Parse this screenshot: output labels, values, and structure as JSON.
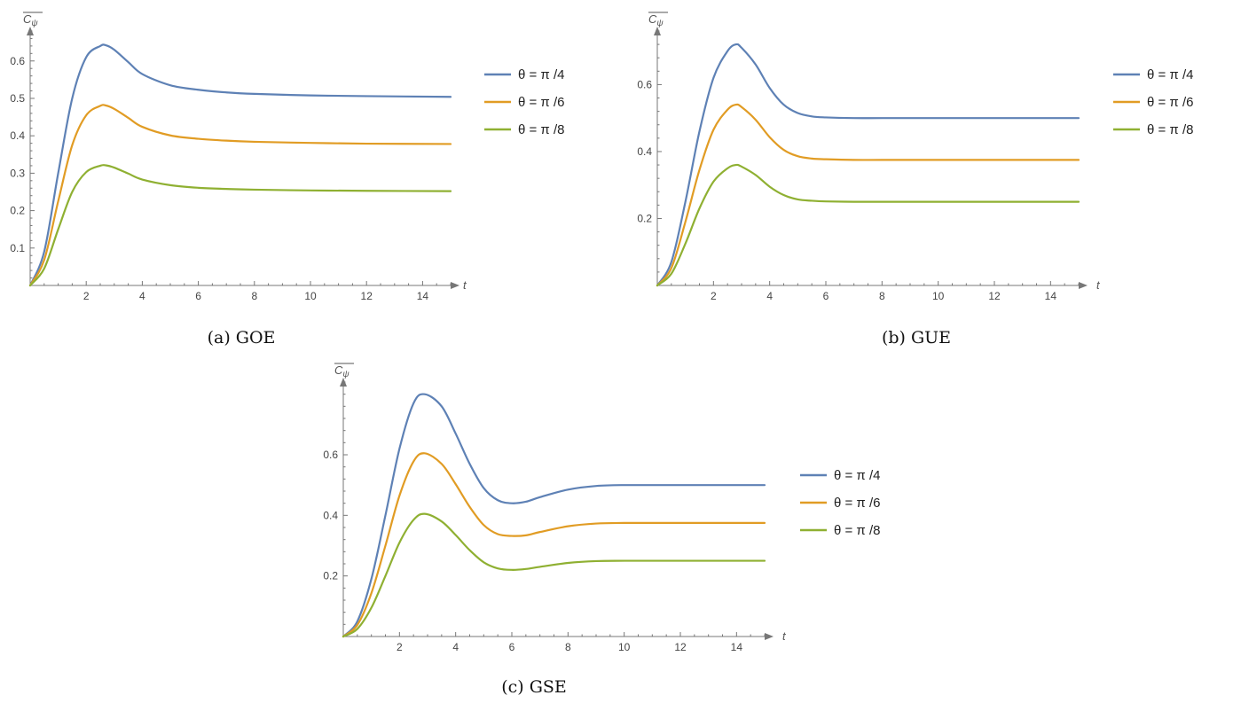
{
  "legend": [
    "θ = π /4",
    "θ = π /6",
    "θ = π /8"
  ],
  "colors": [
    "#5E81B5",
    "#E19C24",
    "#8FB032"
  ],
  "chart_data": [
    {
      "type": "line",
      "caption": "(a) GOE",
      "xlabel": "t",
      "ylabel": "C_ψ",
      "xlim": [
        0,
        15
      ],
      "ylim": [
        0,
        0.68
      ],
      "xticks": [
        2,
        4,
        6,
        8,
        10,
        12,
        14
      ],
      "yticks": [
        0.1,
        0.2,
        0.3,
        0.4,
        0.5,
        0.6
      ],
      "x": [
        0,
        0.5,
        1,
        1.5,
        2,
        2.5,
        2.7,
        3,
        3.5,
        4,
        5,
        6,
        7,
        8,
        10,
        12,
        15
      ],
      "series": [
        {
          "name": "θ = π /4",
          "values": [
            0,
            0.09,
            0.3,
            0.5,
            0.61,
            0.64,
            0.642,
            0.63,
            0.597,
            0.565,
            0.535,
            0.523,
            0.516,
            0.512,
            0.508,
            0.506,
            0.504
          ]
        },
        {
          "name": "θ = π /6",
          "values": [
            0,
            0.068,
            0.225,
            0.375,
            0.455,
            0.48,
            0.481,
            0.472,
            0.448,
            0.424,
            0.401,
            0.392,
            0.387,
            0.384,
            0.381,
            0.379,
            0.378
          ]
        },
        {
          "name": "θ = π /8",
          "values": [
            0,
            0.045,
            0.15,
            0.25,
            0.303,
            0.32,
            0.321,
            0.315,
            0.299,
            0.283,
            0.268,
            0.261,
            0.258,
            0.256,
            0.254,
            0.253,
            0.252
          ]
        }
      ]
    },
    {
      "type": "line",
      "caption": "(b) GUE",
      "xlabel": "t",
      "ylabel": "C_ψ",
      "xlim": [
        0,
        15
      ],
      "ylim": [
        0,
        0.76
      ],
      "xticks": [
        2,
        4,
        6,
        8,
        10,
        12,
        14
      ],
      "yticks": [
        0.2,
        0.4,
        0.6
      ],
      "x": [
        0,
        0.5,
        1,
        1.5,
        2,
        2.5,
        2.8,
        3,
        3.5,
        4,
        4.5,
        5,
        5.5,
        6,
        7,
        8,
        10,
        15
      ],
      "series": [
        {
          "name": "θ = π /4",
          "values": [
            0,
            0.07,
            0.25,
            0.46,
            0.62,
            0.7,
            0.72,
            0.71,
            0.66,
            0.59,
            0.54,
            0.515,
            0.505,
            0.502,
            0.5,
            0.5,
            0.5,
            0.5
          ]
        },
        {
          "name": "θ = π /6",
          "values": [
            0,
            0.052,
            0.19,
            0.345,
            0.465,
            0.525,
            0.54,
            0.533,
            0.495,
            0.443,
            0.405,
            0.386,
            0.379,
            0.377,
            0.375,
            0.375,
            0.375,
            0.375
          ]
        },
        {
          "name": "θ = π /8",
          "values": [
            0,
            0.035,
            0.125,
            0.23,
            0.31,
            0.35,
            0.36,
            0.355,
            0.33,
            0.295,
            0.27,
            0.257,
            0.253,
            0.251,
            0.25,
            0.25,
            0.25,
            0.25
          ]
        }
      ]
    },
    {
      "type": "line",
      "caption": "(c) GSE",
      "xlabel": "t",
      "ylabel": "C_ψ",
      "xlim": [
        0,
        15
      ],
      "ylim": [
        0,
        0.84
      ],
      "xticks": [
        2,
        4,
        6,
        8,
        10,
        12,
        14
      ],
      "yticks": [
        0.2,
        0.4,
        0.6
      ],
      "x": [
        0,
        0.5,
        1,
        1.5,
        2,
        2.5,
        2.9,
        3.5,
        4,
        4.5,
        5,
        5.5,
        6,
        6.5,
        7,
        8,
        9,
        10,
        12,
        15
      ],
      "series": [
        {
          "name": "θ = π /4",
          "values": [
            0,
            0.05,
            0.19,
            0.4,
            0.62,
            0.77,
            0.8,
            0.76,
            0.67,
            0.57,
            0.49,
            0.45,
            0.44,
            0.445,
            0.46,
            0.485,
            0.497,
            0.5,
            0.5,
            0.5
          ]
        },
        {
          "name": "θ = π /6",
          "values": [
            0,
            0.038,
            0.143,
            0.3,
            0.465,
            0.578,
            0.605,
            0.57,
            0.503,
            0.428,
            0.368,
            0.338,
            0.332,
            0.334,
            0.345,
            0.364,
            0.373,
            0.375,
            0.375,
            0.375
          ]
        },
        {
          "name": "θ = π /8",
          "values": [
            0,
            0.025,
            0.095,
            0.2,
            0.31,
            0.385,
            0.405,
            0.38,
            0.335,
            0.285,
            0.245,
            0.225,
            0.22,
            0.223,
            0.23,
            0.243,
            0.249,
            0.25,
            0.25,
            0.25
          ]
        }
      ]
    }
  ]
}
